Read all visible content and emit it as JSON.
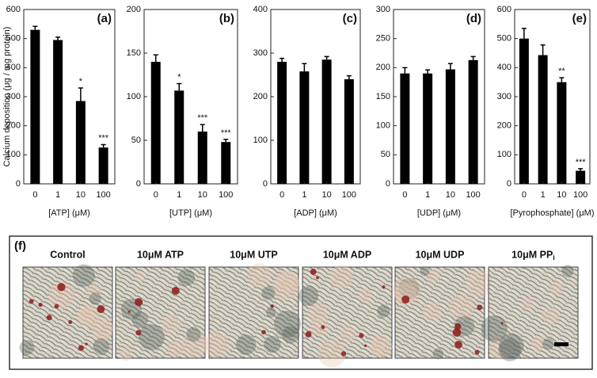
{
  "chart_data": [
    {
      "type": "bar",
      "panel": "(a)",
      "ylabel": "Calcium deposition (μg / mg protein)",
      "xlabel": "[ATP] (μM)",
      "categories": [
        "0",
        "1",
        "10",
        "100"
      ],
      "values": [
        530,
        495,
        285,
        125
      ],
      "errors": [
        12,
        10,
        45,
        10
      ],
      "annotations": [
        null,
        null,
        "*",
        "***"
      ],
      "color": "#000000",
      "ylim": [
        0,
        600
      ],
      "yticks": [
        0,
        100,
        200,
        300,
        400,
        500,
        600
      ]
    },
    {
      "type": "bar",
      "panel": "(b)",
      "xlabel": "[UTP] (μM)",
      "categories": [
        "0",
        "1",
        "10",
        "100"
      ],
      "values": [
        140,
        107,
        60,
        48
      ],
      "errors": [
        8,
        8,
        8,
        3
      ],
      "annotations": [
        null,
        "*",
        "***",
        "***"
      ],
      "color": "#000000",
      "ylim": [
        0,
        200
      ],
      "yticks": [
        0,
        50,
        100,
        150,
        200
      ]
    },
    {
      "type": "bar",
      "panel": "(c)",
      "xlabel": "[ADP] (μM)",
      "categories": [
        "0",
        "1",
        "10",
        "100"
      ],
      "values": [
        280,
        258,
        285,
        240
      ],
      "errors": [
        8,
        18,
        7,
        8
      ],
      "annotations": [
        null,
        null,
        null,
        null
      ],
      "color": "#000000",
      "ylim": [
        0,
        400
      ],
      "yticks": [
        0,
        100,
        200,
        300,
        400
      ]
    },
    {
      "type": "bar",
      "panel": "(d)",
      "xlabel": "[UDP] (μM)",
      "categories": [
        "0",
        "1",
        "10",
        "100"
      ],
      "values": [
        190,
        190,
        197,
        213
      ],
      "errors": [
        10,
        6,
        10,
        6
      ],
      "annotations": [
        null,
        null,
        null,
        null
      ],
      "color": "#000000",
      "ylim": [
        0,
        300
      ],
      "yticks": [
        0,
        50,
        100,
        150,
        200,
        250,
        300
      ]
    },
    {
      "type": "bar",
      "panel": "(e)",
      "xlabel": "[Pyrophosphate] (μM)",
      "categories": [
        "0",
        "1",
        "10",
        "100"
      ],
      "values": [
        500,
        443,
        350,
        45
      ],
      "errors": [
        35,
        35,
        15,
        7
      ],
      "annotations": [
        null,
        null,
        "**",
        "***"
      ],
      "color": "#000000",
      "ylim": [
        0,
        600
      ],
      "yticks": [
        0,
        100,
        200,
        300,
        400,
        500,
        600
      ]
    }
  ],
  "images": {
    "panel": "(f)",
    "captions": [
      "Control",
      "10μM ATP",
      "10μM UTP",
      "10μM ADP",
      "10μM UDP",
      "10μM PP"
    ],
    "last_subscript": "i"
  }
}
